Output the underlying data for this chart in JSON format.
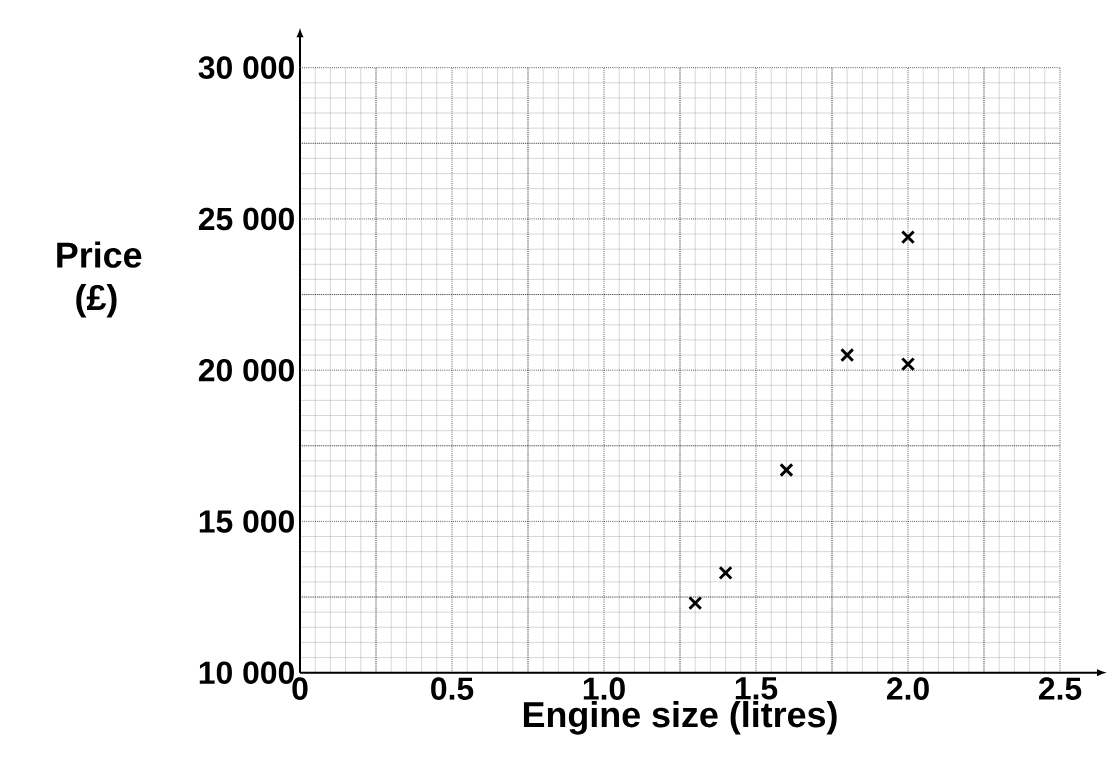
{
  "chart_data": {
    "type": "scatter",
    "xlabel": "Engine size (litres)",
    "ylabel": "Price (£)",
    "x": [
      1.3,
      1.4,
      1.6,
      1.8,
      2.0,
      2.0
    ],
    "values": [
      12300,
      13300,
      16700,
      20500,
      24400,
      20200
    ],
    "color": "#000000",
    "marker": "cross",
    "grid": true,
    "xlim": [
      0,
      2.5
    ],
    "ylim": [
      10000,
      30000
    ],
    "xticks": [
      0,
      0.5,
      {
        "value": 1,
        "label": "1.0"
      },
      1.5,
      {
        "value": 2,
        "label": "2.0"
      },
      2.5
    ],
    "yticks": [
      {
        "value": 10000,
        "label": "10 000"
      },
      {
        "value": 15000,
        "label": "15 000"
      },
      {
        "value": 20000,
        "label": "20 000"
      },
      {
        "value": 25000,
        "label": "25 000"
      },
      {
        "value": 30000,
        "label": "30 000"
      }
    ]
  }
}
